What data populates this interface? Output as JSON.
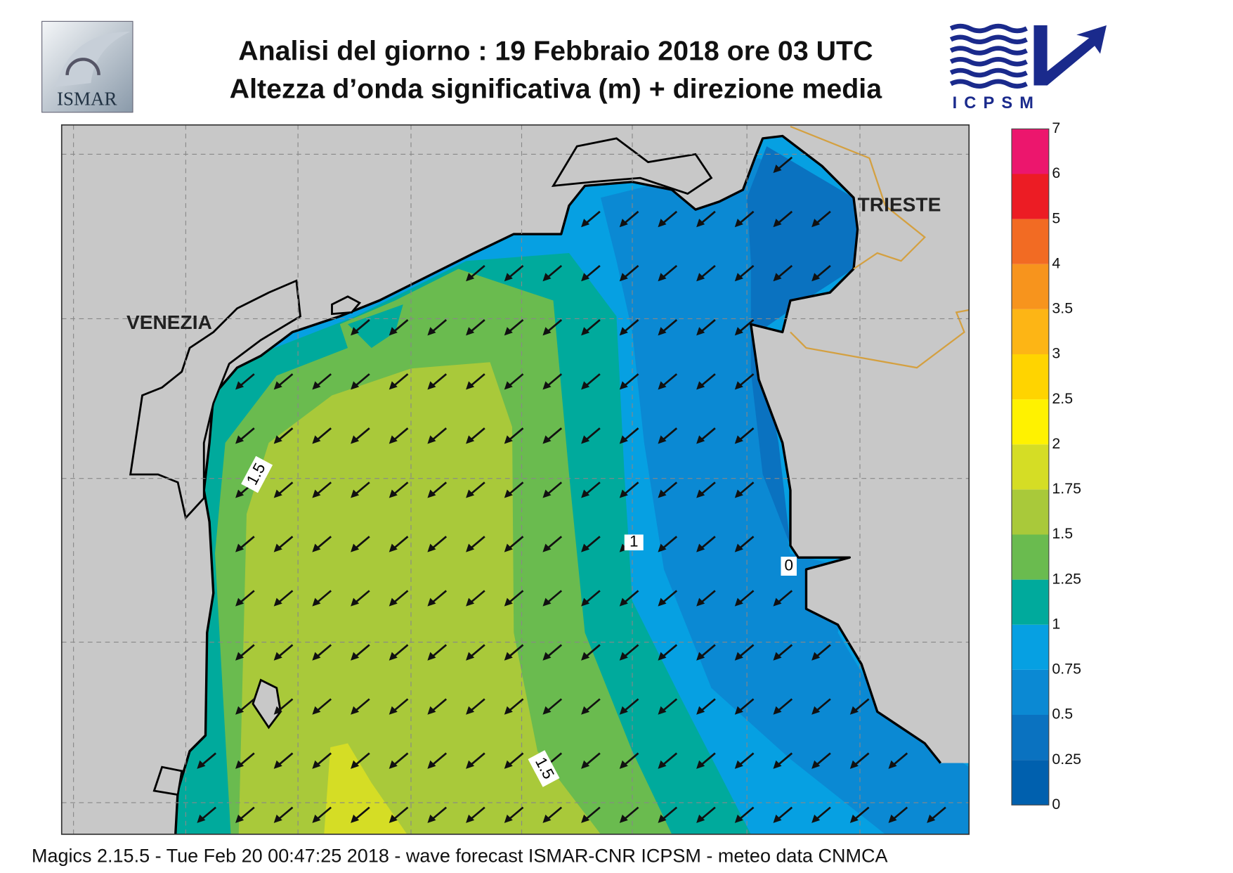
{
  "header": {
    "title_line1": "Analisi del giorno :  19  Febbraio 2018   ore 03 UTC",
    "title_line2": "Altezza d’onda significativa (m) + direzione media",
    "logo_left": "ISMAR",
    "logo_right": "ICPSM"
  },
  "map": {
    "cities": [
      "VENEZIA",
      "TRIESTE"
    ],
    "contour_labels": [
      "1.5",
      "1.5",
      "1",
      "0"
    ]
  },
  "legend": {
    "levels": [
      0,
      0.25,
      0.5,
      0.75,
      1,
      1.25,
      1.5,
      1.75,
      2,
      2.5,
      3,
      3.5,
      4,
      5,
      6,
      7
    ],
    "colors": [
      "#0060ae",
      "#0a72c0",
      "#0b89d3",
      "#06a0e2",
      "#00aa9c",
      "#6abb4f",
      "#a9c93a",
      "#d5dd25",
      "#fff200",
      "#ffd400",
      "#fdb515",
      "#f7941d",
      "#f26b23",
      "#ec1c24",
      "#ec166d"
    ]
  },
  "footer": "Magics 2.15.5 - Tue Feb 20 00:47:25 2018 - wave forecast  ISMAR-CNR  ICPSM - meteo data   CNMCA"
}
